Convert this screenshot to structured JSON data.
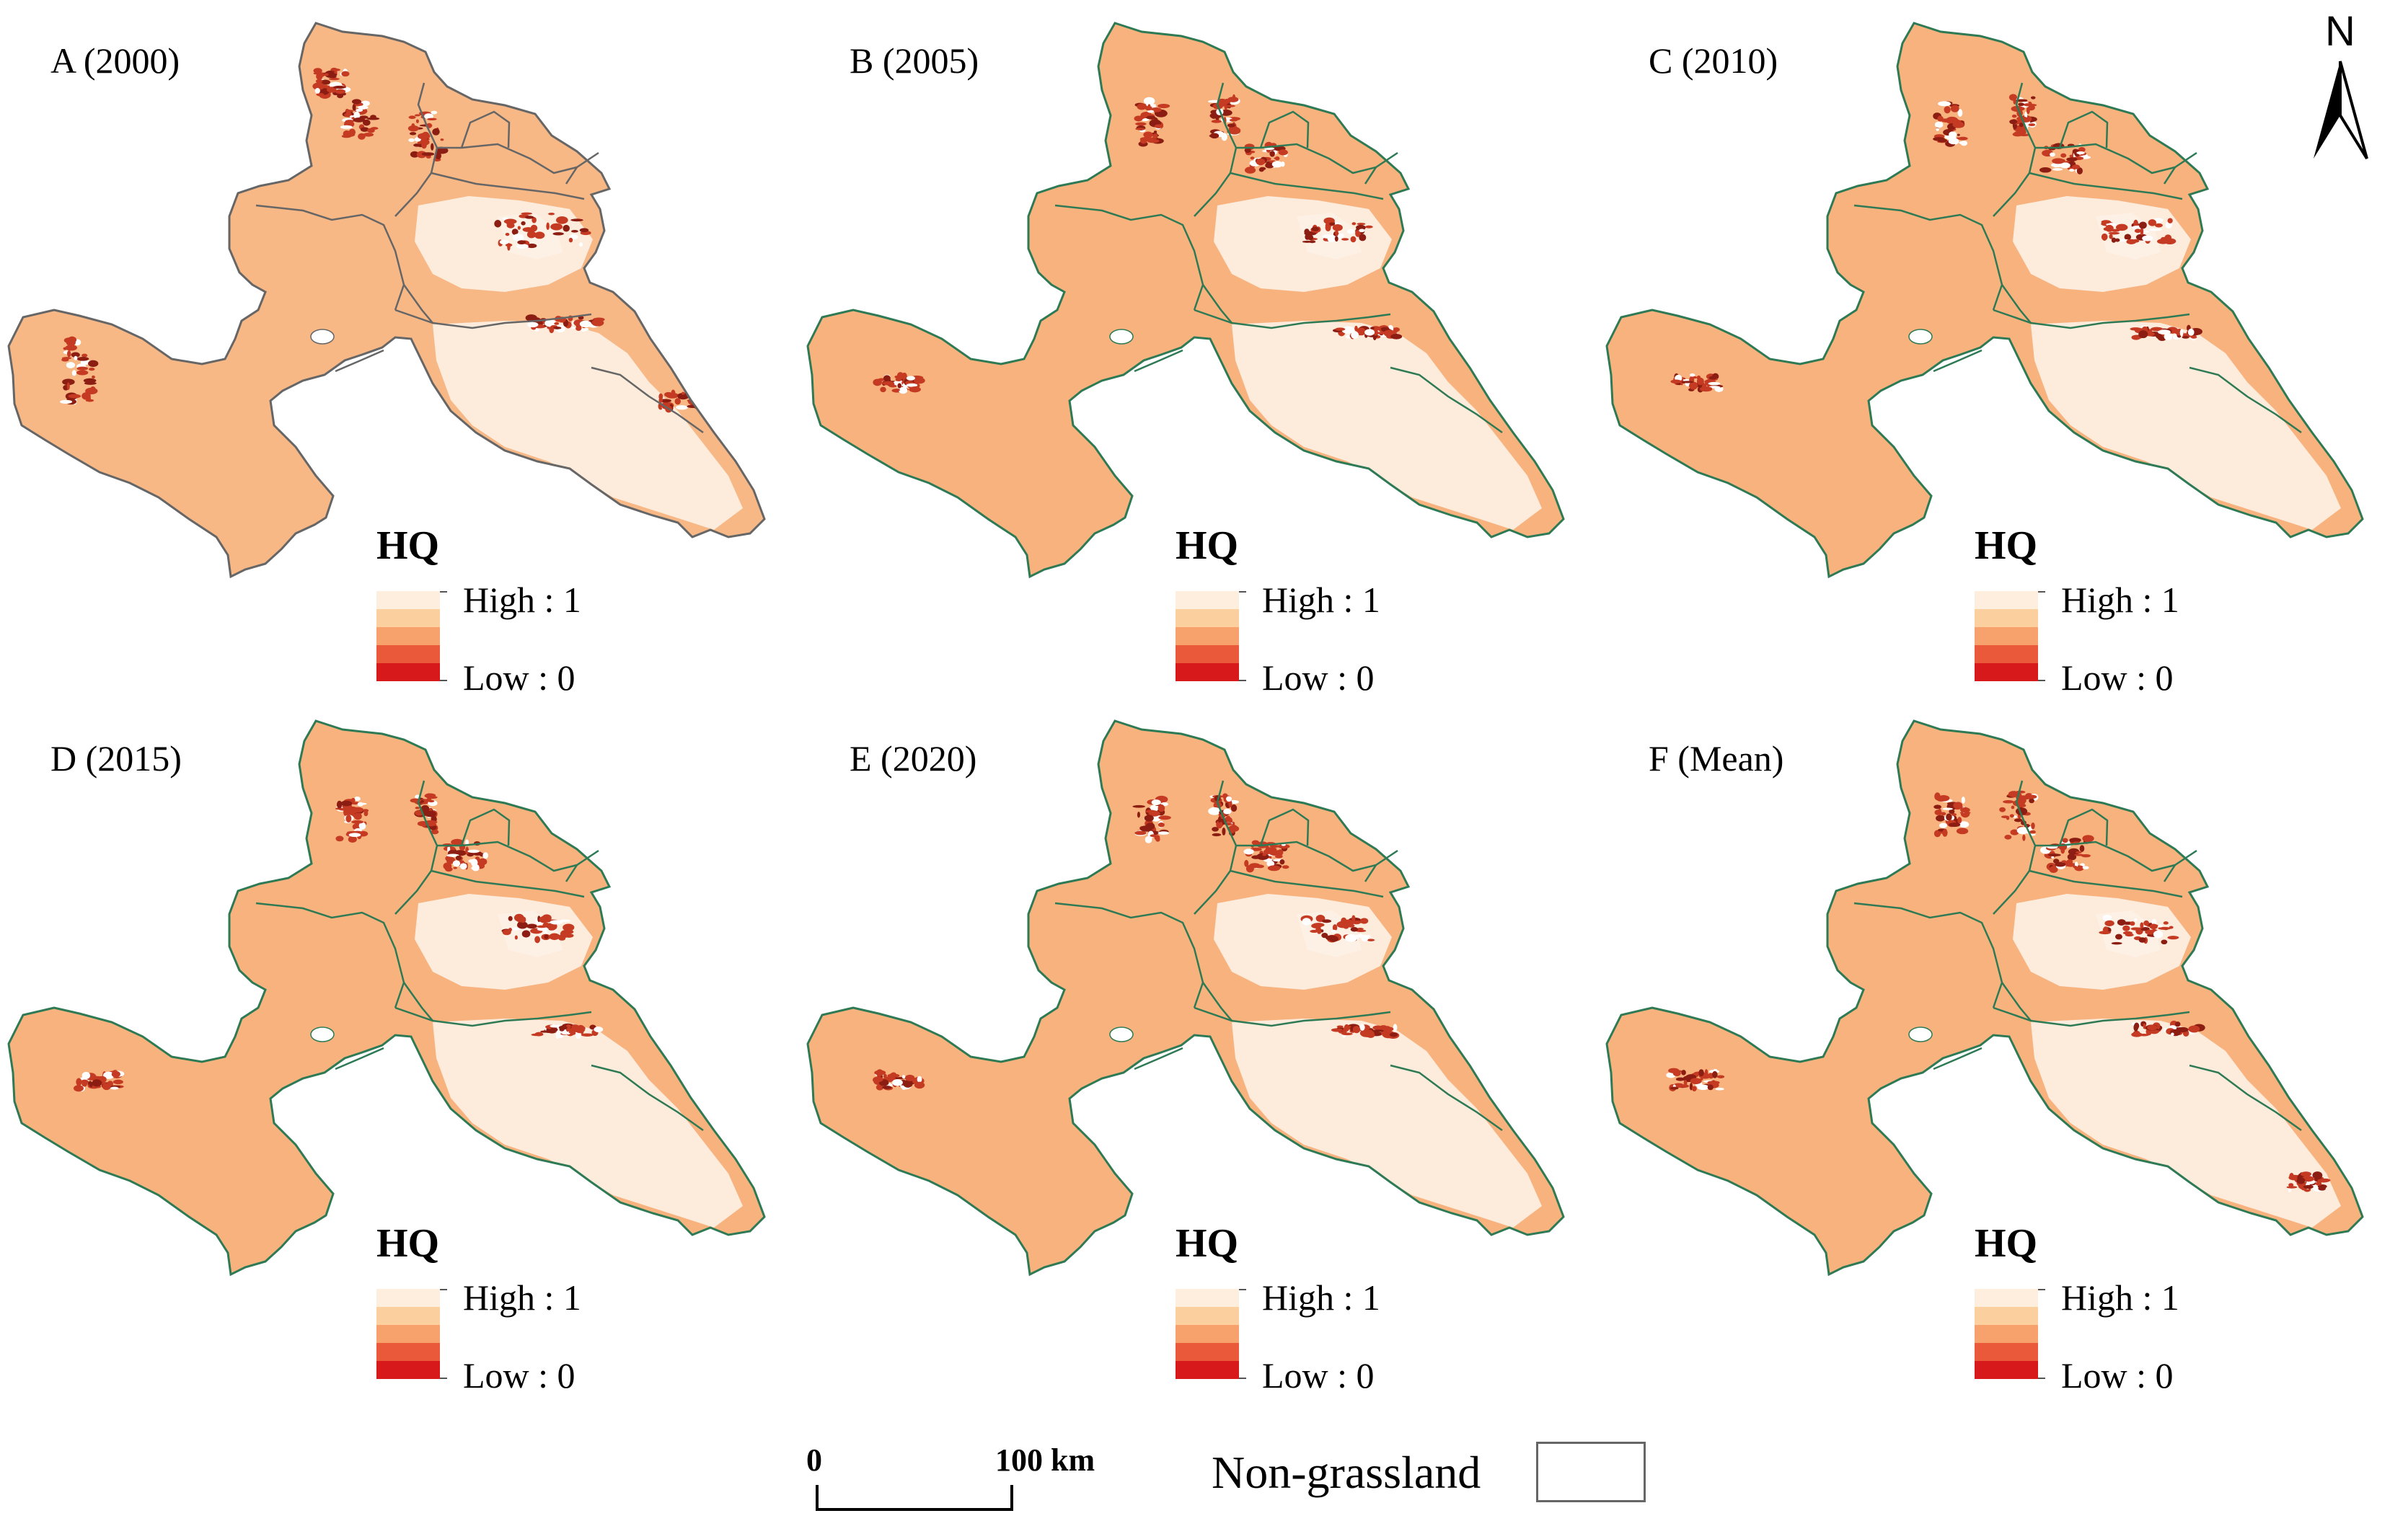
{
  "panels": [
    {
      "label": "A (2000)",
      "style": "early"
    },
    {
      "label": "B (2005)",
      "style": "standard"
    },
    {
      "label": "C (2010)",
      "style": "standard"
    },
    {
      "label": "D (2015)",
      "style": "standard"
    },
    {
      "label": "E (2020)",
      "style": "standard"
    },
    {
      "label": "F (Mean)",
      "style": "mean"
    }
  ],
  "legend": {
    "title": "HQ",
    "high_label": "High : 1",
    "low_label": "Low : 0",
    "ramp_colors": [
      "#fdeedd",
      "#fbcf9e",
      "#f7a26d",
      "#ea5a3a",
      "#d7191c"
    ]
  },
  "north_arrow": {
    "label": "N"
  },
  "scale_bar": {
    "start_label": "0",
    "end_label": "100 km"
  },
  "non_grassland": {
    "label": "Non-grassland"
  },
  "colors": {
    "base_fill": "#f8b27e",
    "early_fill": "#f7b886",
    "boundary_standard": "#2d7a55",
    "boundary_early": "#666666",
    "low_hq": "#c43a22",
    "pale": "#fdf0e4"
  }
}
